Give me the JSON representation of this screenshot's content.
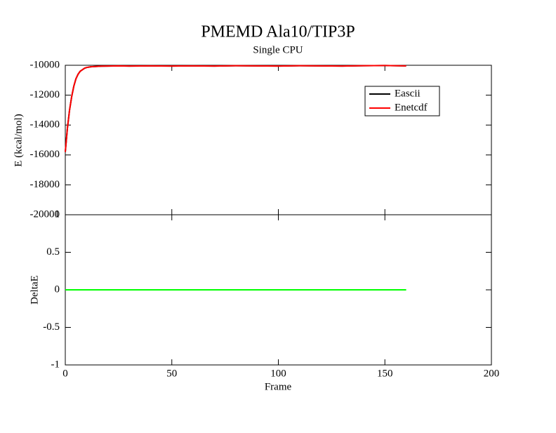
{
  "chart_data": [
    {
      "type": "line",
      "title": "PMEMD Ala10/TIP3P",
      "subtitle": "Single CPU",
      "y_label": "E (kcal/mol)",
      "x": [
        0,
        1,
        2,
        3,
        4,
        5,
        6,
        7,
        8,
        9,
        10,
        12,
        14,
        17,
        20,
        25,
        30,
        40,
        50,
        60,
        70,
        80,
        90,
        100,
        110,
        120,
        130,
        140,
        150,
        160
      ],
      "series": [
        {
          "name": "Eascii",
          "color": "#000000",
          "values": [
            -15800,
            -14200,
            -13000,
            -12100,
            -11400,
            -10900,
            -10600,
            -10400,
            -10300,
            -10200,
            -10150,
            -10100,
            -10080,
            -10060,
            -10050,
            -10040,
            -10050,
            -10040,
            -10050,
            -10040,
            -10050,
            -10030,
            -10040,
            -10050,
            -10030,
            -10040,
            -10050,
            -10030,
            -10020,
            -10040
          ]
        },
        {
          "name": "Enetcdf",
          "color": "#ff0000",
          "values": [
            -15800,
            -14200,
            -13000,
            -12100,
            -11400,
            -10900,
            -10600,
            -10400,
            -10300,
            -10200,
            -10150,
            -10100,
            -10080,
            -10060,
            -10050,
            -10040,
            -10050,
            -10040,
            -10050,
            -10040,
            -10050,
            -10030,
            -10040,
            -10050,
            -10030,
            -10040,
            -10050,
            -10030,
            -10020,
            -10040
          ]
        }
      ],
      "xlim": [
        0,
        200
      ],
      "xticks": [
        0,
        50,
        100,
        150,
        200
      ],
      "ylim": [
        -20000,
        -10000
      ],
      "yticks": [
        -20000,
        -18000,
        -16000,
        -14000,
        -12000,
        -10000
      ],
      "legend": "upper right"
    },
    {
      "type": "line",
      "y_label": "DeltaE",
      "x_label": "Frame",
      "x": [
        0,
        160
      ],
      "series": [
        {
          "color": "#00ff00",
          "values": [
            0,
            0
          ]
        }
      ],
      "xlim": [
        0,
        200
      ],
      "xticks": [
        0,
        50,
        100,
        150,
        200
      ],
      "ylim": [
        -1,
        1
      ],
      "yticks": [
        -1,
        -0.5,
        0,
        0.5,
        1
      ]
    }
  ]
}
